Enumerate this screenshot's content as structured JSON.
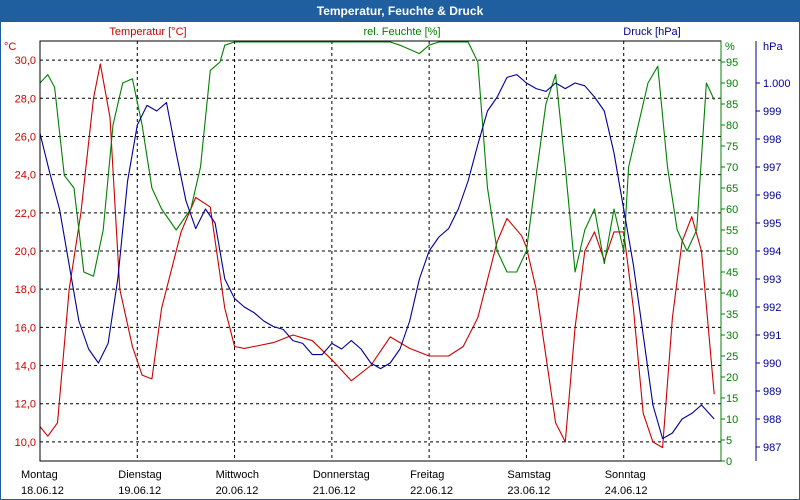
{
  "window": {
    "title": "Temperatur, Feuchte & Druck"
  },
  "chart_data": {
    "type": "line",
    "title": "Temperatur, Feuchte & Druck",
    "colors": {
      "temp": "#cc0000",
      "hum": "#008000",
      "press": "#000099",
      "title_bg": "#1f5f9f"
    },
    "x_days": [
      {
        "day": "Montag",
        "date": "18.06.12"
      },
      {
        "day": "Dienstag",
        "date": "19.06.12"
      },
      {
        "day": "Mittwoch",
        "date": "20.06.12"
      },
      {
        "day": "Donnerstag",
        "date": "21.06.12"
      },
      {
        "day": "Freitag",
        "date": "22.06.12"
      },
      {
        "day": "Samstag",
        "date": "23.06.12"
      },
      {
        "day": "Sonntag",
        "date": "24.06.12"
      }
    ],
    "xlim": [
      0,
      7
    ],
    "axes": {
      "temp": {
        "label": "Temperatur [°C]",
        "unit": "°C",
        "ylim": [
          9,
          31
        ],
        "ticks": [
          "10,0",
          "12,0",
          "14,0",
          "16,0",
          "18,0",
          "20,0",
          "22,0",
          "24,0",
          "26,0",
          "28,0",
          "30,0"
        ]
      },
      "hum": {
        "label": "rel. Feuchte [%]",
        "unit": "%",
        "ylim": [
          0,
          100
        ],
        "ticks": [
          "0",
          "5",
          "10",
          "15",
          "20",
          "25",
          "30",
          "35",
          "40",
          "45",
          "50",
          "55",
          "60",
          "65",
          "70",
          "75",
          "80",
          "85",
          "90",
          "95"
        ]
      },
      "press": {
        "label": "Druck [hPa]",
        "unit": "hPa",
        "ylim": [
          986.5,
          1001.5
        ],
        "ticks": [
          "987",
          "988",
          "989",
          "990",
          "991",
          "992",
          "993",
          "994",
          "995",
          "996",
          "997",
          "998",
          "999",
          "1.000"
        ]
      }
    },
    "series": [
      {
        "name": "Temperatur",
        "axis": "temp",
        "x": [
          0,
          0.08,
          0.18,
          0.3,
          0.42,
          0.55,
          0.62,
          0.72,
          0.82,
          0.95,
          1.05,
          1.15,
          1.25,
          1.45,
          1.6,
          1.75,
          1.9,
          2.0,
          2.1,
          2.2,
          2.4,
          2.6,
          2.8,
          3.0,
          3.2,
          3.4,
          3.6,
          3.8,
          4.0,
          4.2,
          4.35,
          4.5,
          4.6,
          4.7,
          4.8,
          4.95,
          5.0,
          5.1,
          5.2,
          5.3,
          5.4,
          5.5,
          5.6,
          5.7,
          5.8,
          5.9,
          6.0,
          6.1,
          6.2,
          6.3,
          6.4,
          6.5,
          6.6,
          6.7,
          6.8,
          6.93
        ],
        "values": [
          10.8,
          10.3,
          11.0,
          18.0,
          22.0,
          28.0,
          29.8,
          27.0,
          18.0,
          15.0,
          13.5,
          13.3,
          17.0,
          21.0,
          22.8,
          22.3,
          17.0,
          15.0,
          14.9,
          15.0,
          15.2,
          15.6,
          15.3,
          14.3,
          13.2,
          14.0,
          15.5,
          14.9,
          14.5,
          14.5,
          15.0,
          16.5,
          18.5,
          20.5,
          21.7,
          20.8,
          20.2,
          18.0,
          14.5,
          11.0,
          10.0,
          16.0,
          20.0,
          21.0,
          19.5,
          21.0,
          21.0,
          17.0,
          11.5,
          10.0,
          9.7,
          16.5,
          20.5,
          21.8,
          20.0,
          12.5
        ]
      },
      {
        "name": "rel. Feuchte",
        "axis": "hum",
        "x": [
          0,
          0.08,
          0.15,
          0.25,
          0.35,
          0.45,
          0.55,
          0.65,
          0.75,
          0.85,
          0.95,
          1.05,
          1.15,
          1.25,
          1.4,
          1.55,
          1.65,
          1.75,
          1.85,
          1.9,
          2.0,
          2.1,
          2.25,
          2.4,
          2.6,
          2.8,
          3.0,
          3.2,
          3.4,
          3.6,
          3.7,
          3.8,
          3.9,
          4.0,
          4.1,
          4.2,
          4.3,
          4.4,
          4.5,
          4.6,
          4.7,
          4.8,
          4.9,
          5.0,
          5.1,
          5.2,
          5.3,
          5.4,
          5.5,
          5.6,
          5.7,
          5.8,
          5.9,
          6.0,
          6.05,
          6.15,
          6.25,
          6.35,
          6.45,
          6.55,
          6.65,
          6.75,
          6.85,
          6.93
        ],
        "values": [
          90,
          92,
          89,
          68,
          65,
          45,
          44,
          55,
          80,
          90,
          91,
          80,
          65,
          60,
          55,
          60,
          70,
          93,
          95,
          99,
          100,
          100,
          101,
          101,
          101,
          102,
          102,
          102,
          102,
          101,
          99,
          98,
          97,
          99,
          102,
          103,
          103,
          102,
          95,
          65,
          50,
          45,
          45,
          50,
          68,
          85,
          92,
          70,
          45,
          55,
          60,
          47,
          60,
          50,
          70,
          80,
          90,
          94,
          70,
          55,
          50,
          55,
          90,
          86
        ]
      },
      {
        "name": "Druck",
        "axis": "press",
        "x": [
          0,
          0.1,
          0.2,
          0.3,
          0.4,
          0.5,
          0.6,
          0.7,
          0.8,
          0.9,
          1.0,
          1.1,
          1.2,
          1.3,
          1.4,
          1.5,
          1.6,
          1.7,
          1.8,
          1.9,
          2.0,
          2.1,
          2.2,
          2.3,
          2.4,
          2.5,
          2.6,
          2.7,
          2.8,
          2.9,
          3.0,
          3.1,
          3.2,
          3.3,
          3.4,
          3.5,
          3.6,
          3.7,
          3.8,
          3.9,
          4.0,
          4.1,
          4.2,
          4.3,
          4.4,
          4.5,
          4.6,
          4.7,
          4.8,
          4.9,
          5.0,
          5.1,
          5.2,
          5.3,
          5.4,
          5.5,
          5.6,
          5.7,
          5.8,
          5.9,
          6.0,
          6.1,
          6.2,
          6.3,
          6.4,
          6.5,
          6.6,
          6.7,
          6.8,
          6.93
        ],
        "values": [
          998.2,
          996.8,
          995.5,
          993.5,
          991.5,
          990.5,
          990.0,
          990.7,
          993.0,
          996.5,
          998.5,
          999.2,
          999.0,
          999.3,
          997.5,
          995.8,
          994.8,
          995.5,
          995.0,
          993.0,
          992.3,
          992.0,
          991.8,
          991.5,
          991.3,
          991.2,
          990.8,
          990.7,
          990.3,
          990.3,
          990.7,
          990.5,
          990.8,
          990.5,
          990.0,
          989.8,
          990.0,
          990.5,
          991.5,
          993.0,
          994.0,
          994.5,
          994.8,
          995.5,
          996.5,
          997.8,
          999.0,
          999.5,
          1000.2,
          1000.3,
          1000.0,
          999.8,
          999.7,
          1000.0,
          999.8,
          1000.0,
          999.9,
          999.5,
          999.0,
          997.5,
          995.5,
          993.5,
          991.0,
          988.5,
          987.3,
          987.5,
          988.0,
          988.2,
          988.5,
          988.0
        ]
      }
    ]
  }
}
